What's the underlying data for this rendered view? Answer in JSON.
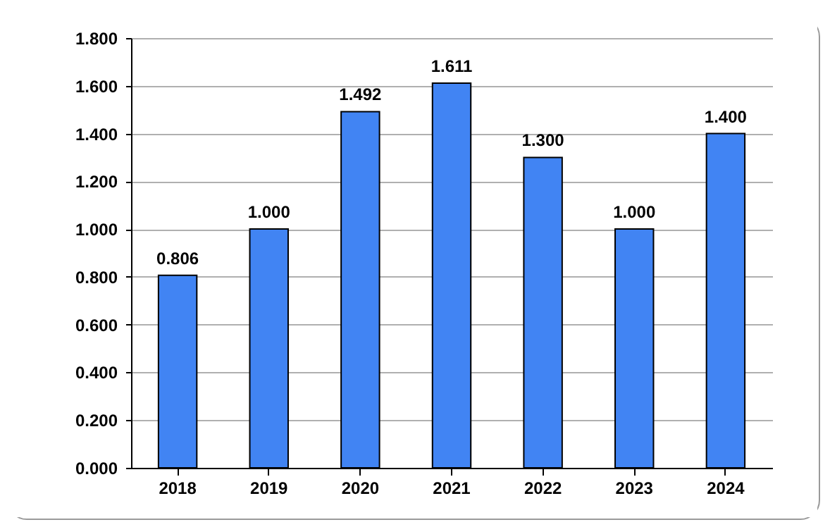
{
  "chart_data": {
    "type": "bar",
    "categories": [
      "2018",
      "2019",
      "2020",
      "2021",
      "2022",
      "2023",
      "2024"
    ],
    "values": [
      0.806,
      1.0,
      1.492,
      1.611,
      1.3,
      1.0,
      1.4
    ],
    "value_labels": [
      "0.806",
      "1.000",
      "1.492",
      "1.611",
      "1.300",
      "1.000",
      "1.400"
    ],
    "color": "#4184f3",
    "ylim": [
      0,
      1.8
    ],
    "yticks": [
      {
        "value": 0,
        "label": "0.000"
      },
      {
        "value": 0.2,
        "label": "0.200"
      },
      {
        "value": 0.4,
        "label": "0.400"
      },
      {
        "value": 0.6,
        "label": "0.600"
      },
      {
        "value": 0.8,
        "label": "0.800"
      },
      {
        "value": 1.0,
        "label": "1.000"
      },
      {
        "value": 1.2,
        "label": "1.200"
      },
      {
        "value": 1.4,
        "label": "1.400"
      },
      {
        "value": 1.6,
        "label": "1.600"
      },
      {
        "value": 1.8,
        "label": "1.800"
      }
    ],
    "grid": "y"
  }
}
